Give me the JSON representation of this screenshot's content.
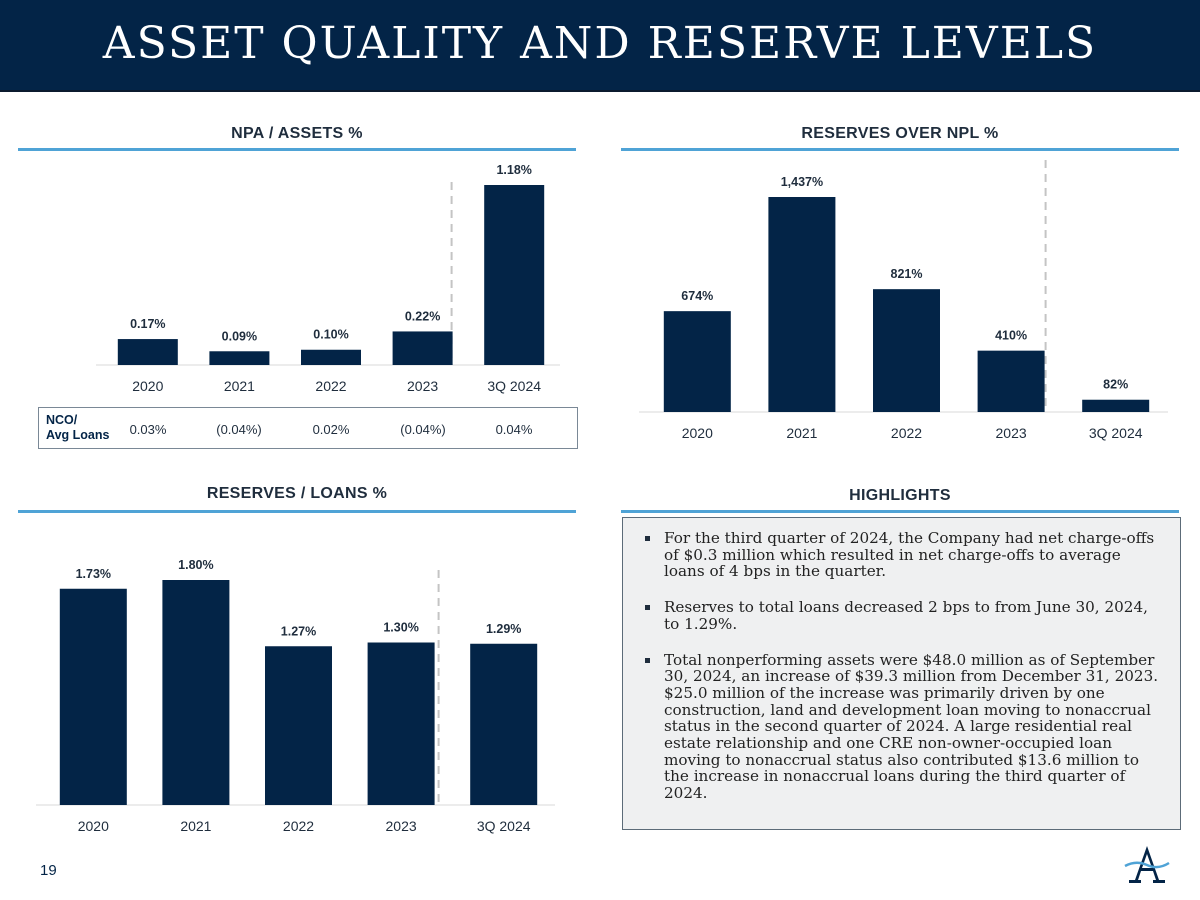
{
  "header": {
    "title": "ASSET QUALITY AND RESERVE LEVELS"
  },
  "colors": {
    "navy": "#032447",
    "accent_blue": "#4fa3d6",
    "highlight_bg": "#eff0f1"
  },
  "chart_data": [
    {
      "type": "bar",
      "title": "NPA / ASSETS %",
      "categories": [
        "2020",
        "2021",
        "2022",
        "2023",
        "3Q 2024"
      ],
      "values": [
        0.17,
        0.09,
        0.1,
        0.22,
        1.18
      ],
      "data_labels": [
        "0.17%",
        "0.09%",
        "0.10%",
        "0.22%",
        "1.18%"
      ],
      "ylim": [
        0,
        1.18
      ],
      "grid": false,
      "legend": "none",
      "color": "#032447"
    },
    {
      "type": "bar",
      "title": "RESERVES OVER NPL %",
      "categories": [
        "2020",
        "2021",
        "2022",
        "2023",
        "3Q 2024"
      ],
      "values": [
        674,
        1437,
        821,
        410,
        82
      ],
      "data_labels": [
        "674%",
        "1,437%",
        "821%",
        "410%",
        "82%"
      ],
      "ylim": [
        0,
        1437
      ],
      "grid": false,
      "legend": "none",
      "color": "#032447"
    },
    {
      "type": "bar",
      "title": "RESERVES / LOANS %",
      "categories": [
        "2020",
        "2021",
        "2022",
        "2023",
        "3Q 2024"
      ],
      "values": [
        1.73,
        1.8,
        1.27,
        1.3,
        1.29
      ],
      "data_labels": [
        "1.73%",
        "1.80%",
        "1.27%",
        "1.30%",
        "1.29%"
      ],
      "ylim": [
        0,
        1.8
      ],
      "grid": false,
      "legend": "none",
      "color": "#032447"
    }
  ],
  "nco_table": {
    "label_line1": "NCO/",
    "label_line2": "Avg Loans",
    "values": [
      "0.03%",
      "(0.04%)",
      "0.02%",
      "(0.04%)",
      "0.04%"
    ]
  },
  "highlights": {
    "title": "HIGHLIGHTS",
    "items": [
      "For the third quarter of 2024, the Company had net charge-offs of $0.3 million which resulted in net charge-offs to average loans of 4 bps in the quarter.",
      "Reserves to total loans decreased 2 bps to from June 30, 2024, to 1.29%.",
      "Total nonperforming assets were $48.0 million as of September 30, 2024, an increase of $39.3 million from December 31, 2023. $25.0 million of the increase was primarily driven by one construction, land and development loan moving to nonaccrual status in the second quarter of 2024. A large residential real estate relationship and one CRE non-owner-occupied loan moving to nonaccrual status also contributed $13.6 million to the increase in nonaccrual loans during the third quarter of 2024."
    ]
  },
  "footer": {
    "page_number": "19",
    "logo_icon": "company-logo-icon"
  }
}
